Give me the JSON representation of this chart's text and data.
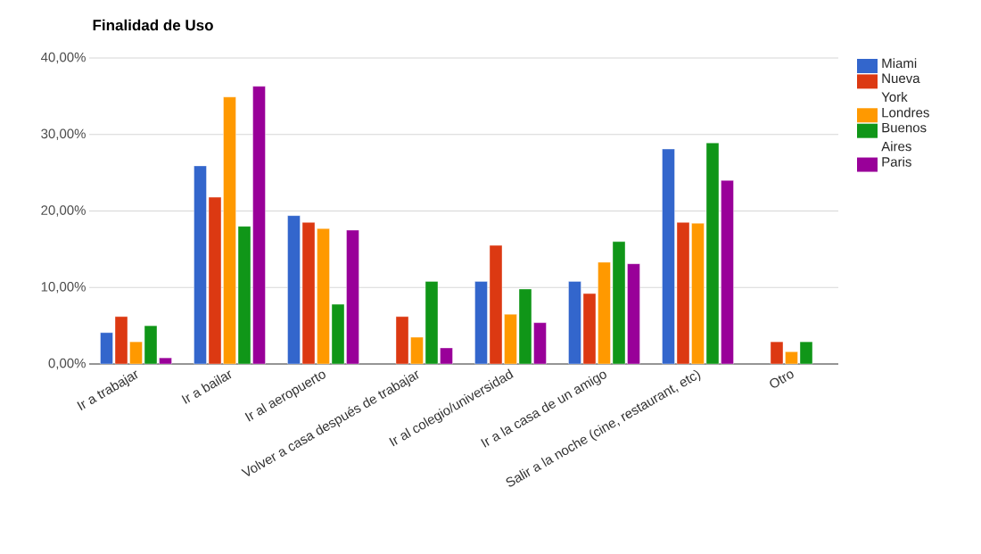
{
  "chart_data": {
    "type": "bar",
    "title": "Finalidad de Uso",
    "categories": [
      "Ir a trabajar",
      "Ir a bailar",
      "Ir al aeropuerto",
      "Volver a casa después de trabajar",
      "Ir al colegio/universidad",
      "Ir a la casa de un amigo",
      "Salir a la noche (cine, restaurant, etc)",
      "Otro"
    ],
    "series": [
      {
        "name": "Miami",
        "color": "#3366cc",
        "values": [
          4.1,
          25.9,
          19.4,
          null,
          10.8,
          10.8,
          28.1,
          null
        ]
      },
      {
        "name": "Nueva York",
        "color": "#dc3912",
        "values": [
          6.2,
          21.8,
          18.5,
          6.2,
          15.5,
          9.2,
          18.5,
          2.9
        ]
      },
      {
        "name": "Londres",
        "color": "#ff9900",
        "values": [
          2.9,
          34.9,
          17.7,
          3.5,
          6.5,
          13.3,
          18.4,
          1.6
        ]
      },
      {
        "name": "Buenos Aires",
        "color": "#109618",
        "values": [
          5.0,
          18.0,
          7.8,
          10.8,
          9.8,
          16.0,
          28.9,
          2.9
        ]
      },
      {
        "name": "Paris",
        "color": "#990099",
        "values": [
          0.8,
          36.3,
          17.5,
          2.1,
          5.4,
          13.1,
          24.0,
          null
        ]
      }
    ],
    "ylim": [
      0,
      40
    ],
    "yticks": [
      {
        "value": 0,
        "label": "0,00%"
      },
      {
        "value": 10,
        "label": "10,00%"
      },
      {
        "value": 20,
        "label": "20,00%"
      },
      {
        "value": 30,
        "label": "30,00%"
      },
      {
        "value": 40,
        "label": "40,00%"
      }
    ],
    "grid": "y",
    "legend": "right"
  }
}
